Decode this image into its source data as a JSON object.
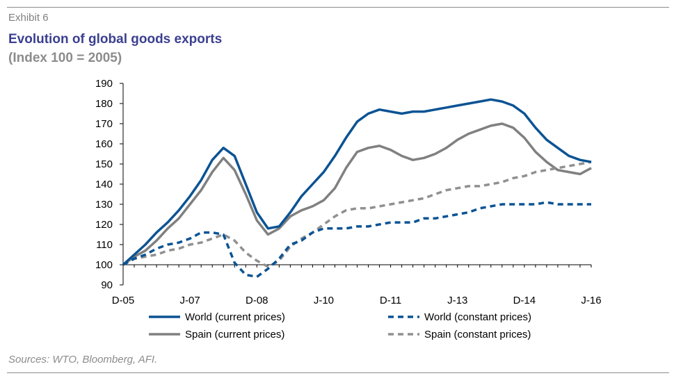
{
  "header": {
    "exhibit": "Exhibit 6",
    "title": "Evolution of global goods exports",
    "subtitle": "(Index 100 = 2005)"
  },
  "footer": {
    "source": "Sources: WTO, Bloomberg, AFI."
  },
  "chart_data": {
    "type": "line",
    "title": "Evolution of global goods exports",
    "subtitle": "(Index 100 = 2005)",
    "xlabel": "",
    "ylabel": "",
    "ylim": [
      90,
      190
    ],
    "yticks": [
      90,
      100,
      110,
      120,
      130,
      140,
      150,
      160,
      170,
      180,
      190
    ],
    "grid": false,
    "legend_position": "bottom",
    "xlim": [
      0,
      42
    ],
    "xticks": [
      {
        "x": 0,
        "label": "D-05"
      },
      {
        "x": 6,
        "label": "J-07"
      },
      {
        "x": 12,
        "label": "D-08"
      },
      {
        "x": 18,
        "label": "J-10"
      },
      {
        "x": 24,
        "label": "D-11"
      },
      {
        "x": 30,
        "label": "J-13"
      },
      {
        "x": 36,
        "label": "D-14"
      },
      {
        "x": 42,
        "label": "J-16"
      }
    ],
    "x": [
      0,
      1,
      2,
      3,
      4,
      5,
      6,
      7,
      8,
      9,
      10,
      11,
      12,
      13,
      14,
      15,
      16,
      17,
      18,
      19,
      20,
      21,
      22,
      23,
      24,
      25,
      26,
      27,
      28,
      29,
      30,
      31,
      32,
      33,
      34,
      35,
      36,
      37,
      38,
      39,
      40,
      41,
      42
    ],
    "series": [
      {
        "name": "World (current prices)",
        "color": "#0b5394",
        "style": "solid",
        "values": [
          100,
          105,
          110,
          116,
          121,
          127,
          134,
          142,
          152,
          158,
          154,
          140,
          126,
          118,
          119,
          126,
          134,
          140,
          146,
          154,
          163,
          171,
          175,
          177,
          176,
          175,
          176,
          176,
          177,
          178,
          179,
          180,
          181,
          182,
          181,
          179,
          175,
          168,
          162,
          158,
          154,
          152,
          151
        ]
      },
      {
        "name": "World (constant prices)",
        "color": "#0b5394",
        "style": "dashed",
        "values": [
          100,
          103,
          105,
          108,
          110,
          111,
          113,
          116,
          116,
          115,
          101,
          95,
          94,
          98,
          103,
          110,
          112,
          116,
          118,
          118,
          118,
          119,
          119,
          120,
          121,
          121,
          121,
          123,
          123,
          124,
          125,
          126,
          128,
          129,
          130,
          130,
          130,
          130,
          131,
          130,
          130,
          130,
          130
        ]
      },
      {
        "name": "Spain (current prices)",
        "color": "#808080",
        "style": "solid",
        "values": [
          100,
          104,
          107,
          112,
          118,
          123,
          130,
          137,
          146,
          153,
          147,
          135,
          122,
          115,
          118,
          124,
          127,
          129,
          132,
          138,
          148,
          156,
          158,
          159,
          157,
          154,
          152,
          153,
          155,
          158,
          162,
          165,
          167,
          169,
          170,
          168,
          163,
          156,
          151,
          147,
          146,
          145,
          148
        ]
      },
      {
        "name": "Spain (constant prices)",
        "color": "#909090",
        "style": "dashed",
        "values": [
          100,
          103,
          104,
          105,
          107,
          108,
          110,
          111,
          113,
          115,
          112,
          106,
          102,
          99,
          102,
          109,
          113,
          116,
          120,
          124,
          127,
          128,
          128,
          129,
          130,
          131,
          132,
          133,
          135,
          137,
          138,
          139,
          139,
          140,
          141,
          143,
          144,
          146,
          147,
          148,
          149,
          150,
          151
        ]
      }
    ]
  }
}
